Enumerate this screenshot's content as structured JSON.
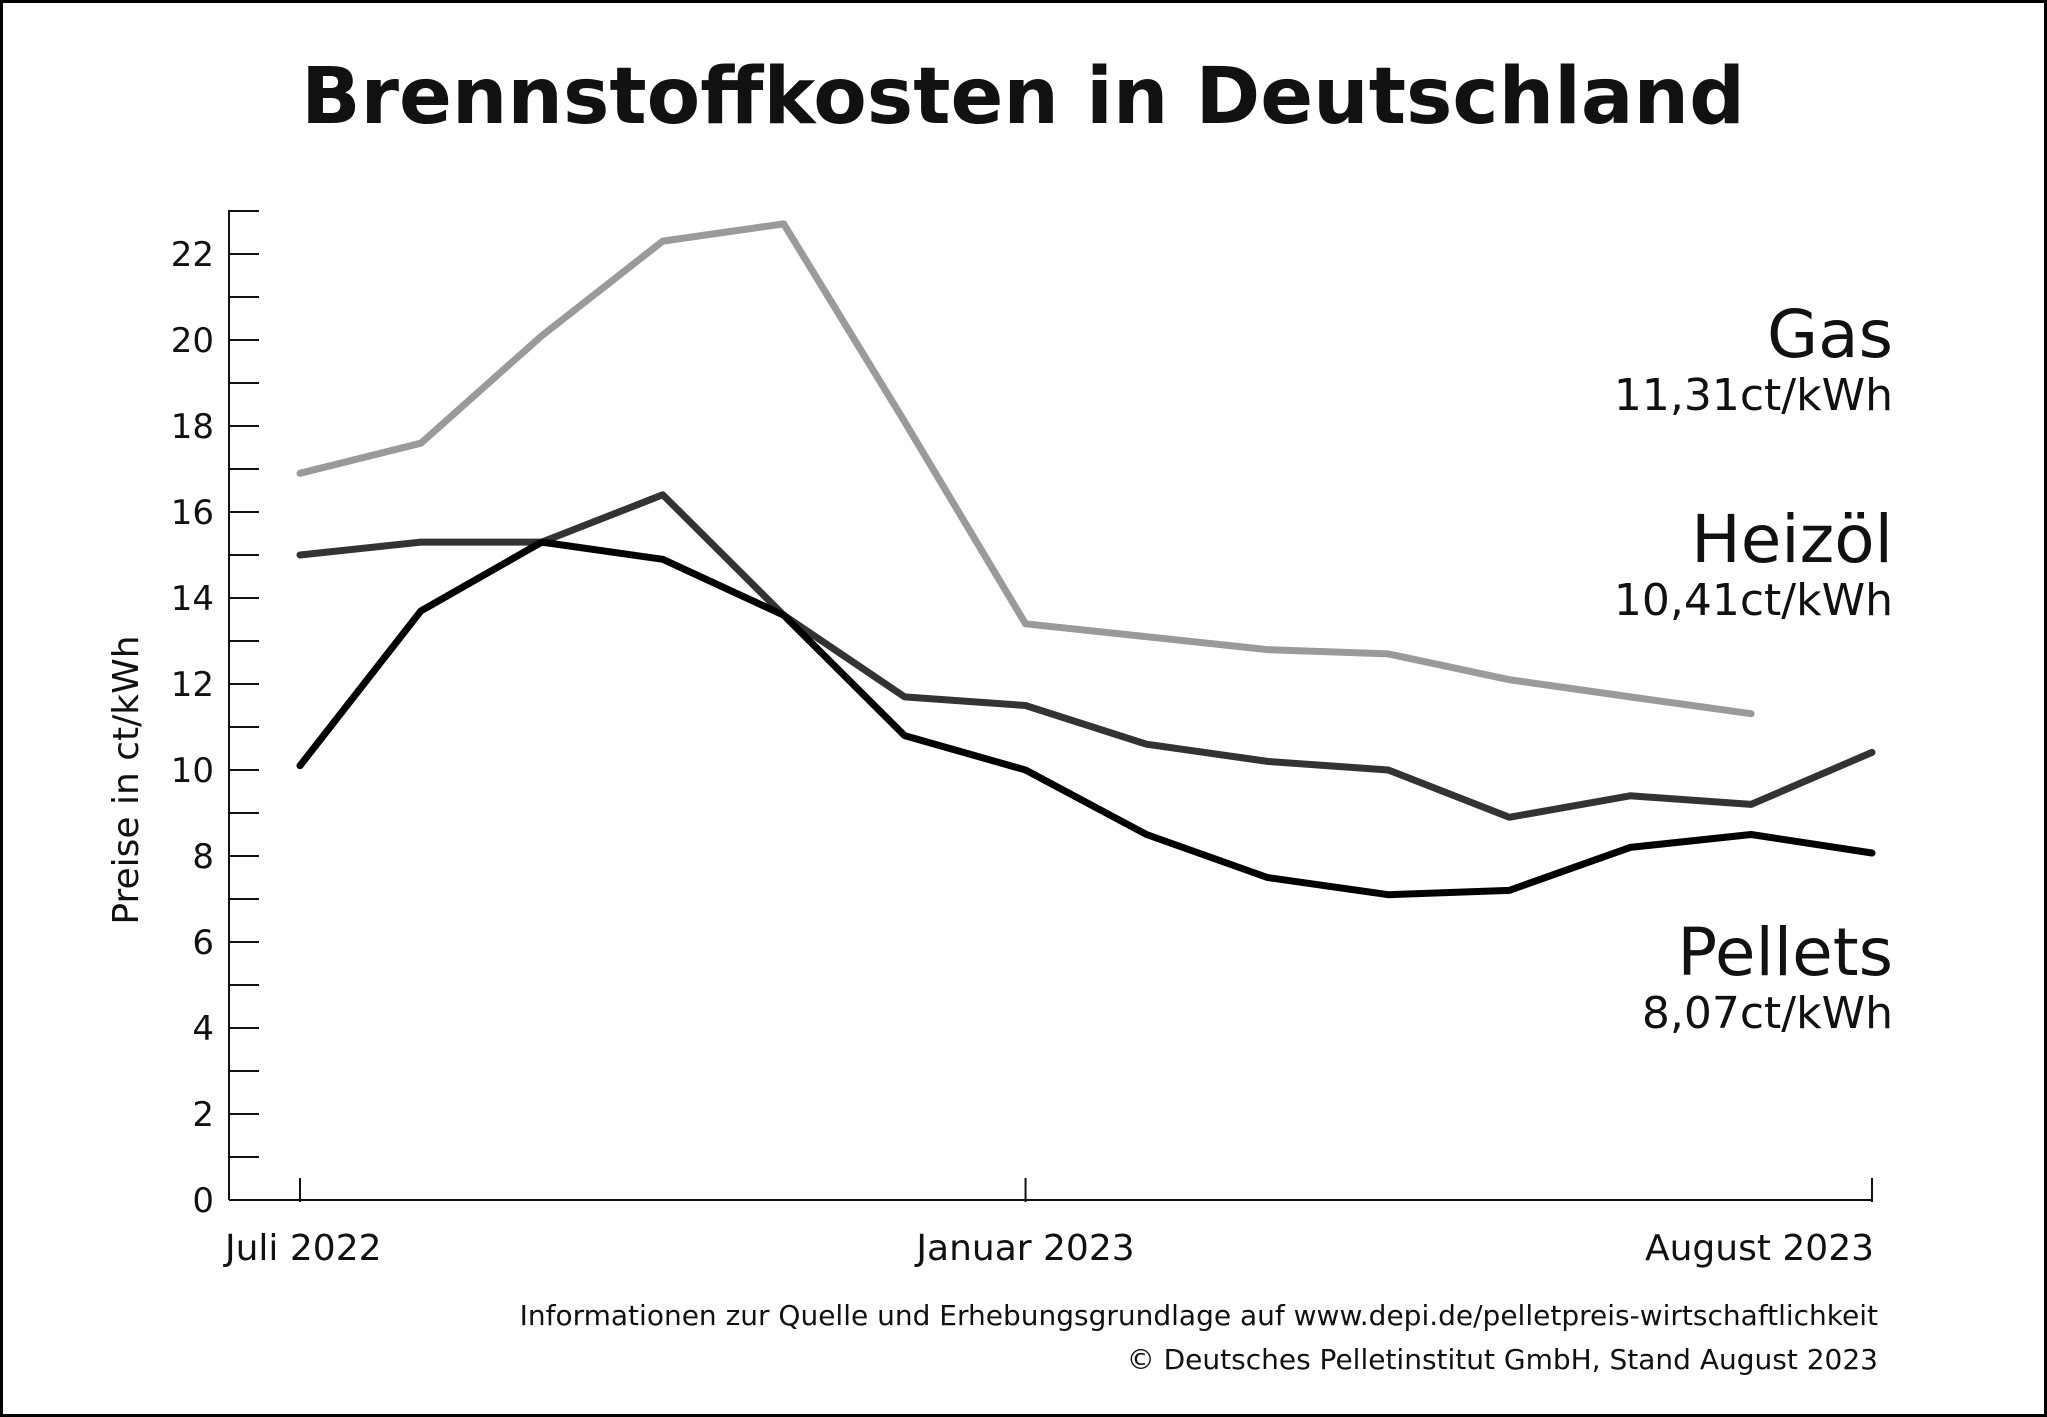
{
  "chart_data": {
    "type": "line",
    "title": "Brennstoffkosten in Deutschland",
    "ylabel": "Preise in ct/kWh",
    "ylim": [
      0,
      23
    ],
    "y_ticks": [
      "0",
      "2",
      "4",
      "6",
      "8",
      "10",
      "12",
      "14",
      "16",
      "18",
      "20",
      "22"
    ],
    "x": [
      "2022-07",
      "2022-08",
      "2022-09",
      "2022-10",
      "2022-11",
      "2022-12",
      "2023-01",
      "2023-02",
      "2023-03",
      "2023-04",
      "2023-05",
      "2023-06",
      "2023-07",
      "2023-08"
    ],
    "x_tick_labels": [
      {
        "x": "2022-07",
        "label": "Juli 2022"
      },
      {
        "x": "2023-01",
        "label": "Januar 2023"
      },
      {
        "x": "2023-08",
        "label": "August 2023"
      }
    ],
    "grid": false,
    "series": [
      {
        "name": "Gas",
        "value_label": "11,31ct/kWh",
        "color": "#9a9a9a",
        "values": [
          16.9,
          17.6,
          20.1,
          22.3,
          22.7,
          18.1,
          13.4,
          13.1,
          12.8,
          12.7,
          12.1,
          11.7,
          11.31,
          null
        ]
      },
      {
        "name": "Heizöl",
        "value_label": "10,41ct/kWh",
        "color": "#333333",
        "values": [
          15.0,
          15.3,
          15.3,
          16.4,
          13.6,
          11.7,
          11.5,
          10.6,
          10.2,
          10.0,
          8.9,
          9.4,
          9.2,
          10.41
        ]
      },
      {
        "name": "Pellets",
        "value_label": "8,07ct/kWh",
        "color": "#000000",
        "values": [
          10.1,
          13.7,
          15.3,
          14.9,
          13.6,
          10.8,
          10.0,
          8.5,
          7.5,
          7.1,
          7.2,
          8.2,
          8.5,
          8.07
        ]
      }
    ]
  },
  "footer": {
    "line1": "Informationen zur Quelle und Erhebungsgrundlage auf www.depi.de/pelletpreis-wirtschaftlichkeit",
    "line2": "© Deutsches Pelletinstitut GmbH, Stand August 2023"
  }
}
